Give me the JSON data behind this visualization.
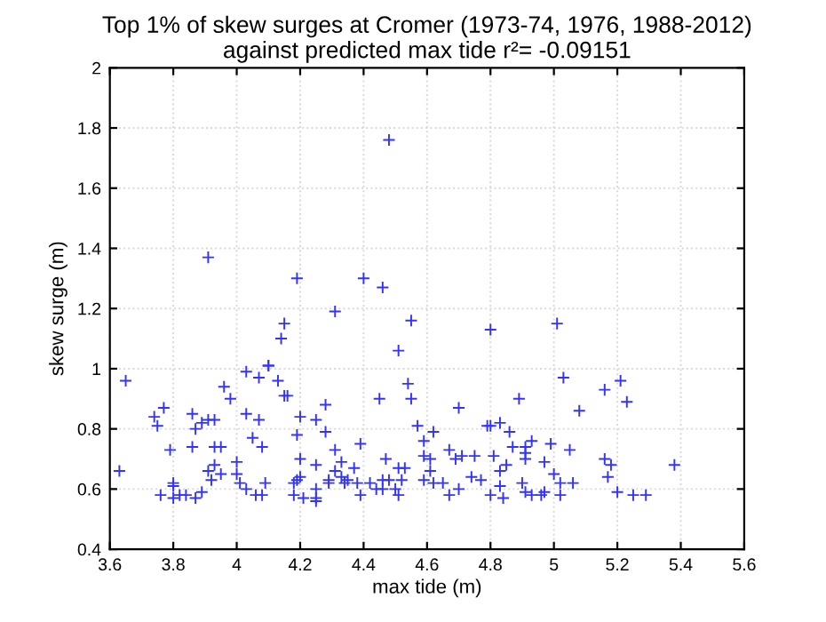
{
  "chart_data": {
    "type": "scatter",
    "title": "Top 1% of skew surges at Cromer (1973-74, 1976, 1988-2012)\nagainst predicted max tide r²= -0.09151",
    "xlabel": "max tide (m)",
    "ylabel": "skew surge (m)",
    "xlim": [
      3.6,
      5.6
    ],
    "xticks": [
      3.6,
      3.8,
      4,
      4.2,
      4.4,
      4.6,
      4.8,
      5,
      5.2,
      5.4,
      5.6
    ],
    "ylim": [
      0.4,
      2
    ],
    "yticks": [
      0.4,
      0.6,
      0.8,
      1,
      1.2,
      1.4,
      1.6,
      1.8,
      2
    ],
    "grid": true,
    "marker": "cross",
    "series": [
      {
        "color": "#3333ff",
        "x": [
          3.91,
          4.48,
          4.19,
          4.4,
          4.46,
          4.31,
          4.15,
          4.55,
          4.14,
          4.8,
          5.01,
          3.63,
          3.65,
          3.74,
          3.75,
          3.77,
          3.76,
          3.79,
          3.8,
          3.8,
          3.8,
          3.82,
          3.84,
          3.86,
          3.87,
          3.86,
          3.89,
          3.91,
          3.93,
          3.87,
          3.89,
          3.91,
          3.93,
          3.92,
          3.93,
          3.95,
          3.95,
          3.96,
          3.98,
          4.0,
          4.0,
          4.01,
          4.03,
          4.03,
          4.03,
          4.05,
          4.07,
          4.07,
          4.08,
          4.09,
          4.06,
          4.08,
          4.1,
          4.1,
          4.13,
          4.15,
          4.16,
          4.18,
          4.18,
          4.19,
          4.2,
          4.2,
          4.2,
          4.19,
          4.21,
          4.25,
          4.25,
          4.25,
          4.25,
          4.25,
          4.28,
          4.28,
          4.29,
          4.29,
          4.31,
          4.31,
          4.33,
          4.33,
          4.34,
          4.35,
          4.37,
          4.39,
          4.38,
          4.39,
          4.42,
          4.45,
          4.44,
          4.46,
          4.46,
          4.47,
          4.48,
          4.5,
          4.51,
          4.51,
          4.51,
          4.53,
          4.52,
          4.54,
          4.55,
          4.57,
          4.59,
          4.59,
          4.62,
          4.59,
          4.61,
          4.61,
          4.62,
          4.65,
          4.67,
          4.67,
          4.69,
          4.7,
          4.7,
          4.71,
          4.74,
          4.75,
          4.77,
          4.79,
          4.8,
          4.8,
          4.81,
          4.83,
          4.83,
          4.83,
          4.84,
          4.85,
          4.86,
          4.87,
          4.89,
          4.9,
          4.91,
          4.91,
          4.91,
          4.91,
          4.93,
          4.93,
          4.96,
          4.97,
          4.97,
          4.99,
          5.0,
          5.02,
          5.02,
          5.03,
          5.05,
          5.06,
          5.08,
          5.16,
          5.16,
          5.17,
          5.18,
          5.2,
          5.21,
          5.23,
          5.25,
          5.29,
          5.38
        ],
        "values": [
          1.37,
          1.76,
          1.3,
          1.3,
          1.27,
          1.19,
          1.15,
          1.16,
          1.1,
          1.13,
          1.15,
          0.66,
          0.96,
          0.84,
          0.81,
          0.87,
          0.58,
          0.73,
          0.62,
          0.61,
          0.57,
          0.58,
          0.58,
          0.85,
          0.8,
          0.74,
          0.82,
          0.83,
          0.83,
          0.57,
          0.59,
          0.66,
          0.68,
          0.63,
          0.74,
          0.74,
          0.65,
          0.94,
          0.9,
          0.69,
          0.65,
          0.62,
          0.99,
          0.85,
          0.6,
          0.77,
          0.83,
          0.97,
          0.74,
          0.62,
          0.58,
          0.58,
          1.01,
          1.01,
          0.96,
          0.91,
          0.91,
          0.62,
          0.58,
          0.78,
          0.84,
          0.7,
          0.64,
          0.63,
          0.57,
          0.83,
          0.68,
          0.6,
          0.57,
          0.56,
          0.88,
          0.79,
          0.63,
          0.62,
          0.73,
          0.66,
          0.64,
          0.69,
          0.62,
          0.63,
          0.67,
          0.75,
          0.62,
          0.58,
          0.62,
          0.9,
          0.6,
          0.63,
          0.6,
          0.7,
          0.63,
          0.6,
          0.58,
          0.67,
          1.06,
          0.67,
          0.63,
          0.95,
          0.9,
          0.81,
          0.71,
          0.63,
          0.79,
          0.76,
          0.7,
          0.66,
          0.62,
          0.62,
          0.73,
          0.58,
          0.7,
          0.6,
          0.87,
          0.71,
          0.64,
          0.71,
          0.63,
          0.81,
          0.81,
          0.58,
          0.71,
          0.82,
          0.66,
          0.61,
          0.57,
          0.68,
          0.79,
          0.74,
          0.9,
          0.62,
          0.59,
          0.74,
          0.72,
          0.7,
          0.76,
          0.58,
          0.58,
          0.59,
          0.69,
          0.75,
          0.65,
          0.62,
          0.58,
          0.97,
          0.73,
          0.62,
          0.86,
          0.7,
          0.93,
          0.64,
          0.68,
          0.59,
          0.96,
          0.89,
          0.58,
          0.58,
          0.68
        ]
      }
    ]
  }
}
